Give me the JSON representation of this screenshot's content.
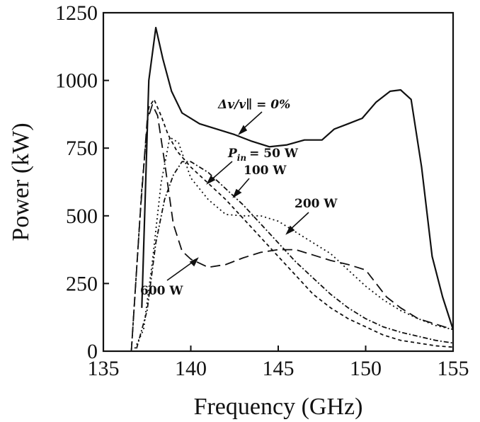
{
  "chart_data": {
    "type": "line",
    "xlabel": "Frequency (GHz)",
    "ylabel": "Power (kW)",
    "xlim": [
      135,
      155
    ],
    "ylim": [
      0,
      1250
    ],
    "xticks": [
      "135",
      "140",
      "145",
      "150",
      "155"
    ],
    "yticks": [
      "0",
      "250",
      "500",
      "750",
      "1000",
      "1250"
    ],
    "grid": false,
    "legend": "none",
    "annotations": {
      "label_0": "Δv/v∥ = 0%",
      "label_50": "P",
      "label_50_sub": "in",
      "label_50_rest": "= 50 W",
      "label_100": "100 W",
      "label_200": "200 W",
      "label_600": "600 W"
    },
    "series": [
      {
        "style": "solid",
        "x": [
          137.2,
          137.6,
          138.0,
          138.4,
          138.9,
          139.5,
          140.5,
          141.5,
          142.5,
          143.5,
          144.5,
          145.5,
          146.5,
          147.5,
          148.2,
          149.0,
          149.8,
          150.6,
          151.4,
          152.0,
          152.6,
          153.2,
          153.8,
          154.4,
          155.0
        ],
        "y": [
          160,
          1000,
          1195,
          1080,
          960,
          880,
          840,
          820,
          800,
          775,
          755,
          762,
          780,
          780,
          820,
          840,
          860,
          920,
          960,
          965,
          930,
          680,
          350,
          200,
          80
        ]
      },
      {
        "style": "dotted",
        "x": [
          136.8,
          137.3,
          137.8,
          138.3,
          138.8,
          139.3,
          140.0,
          141.0,
          142.0,
          143.0,
          144.0,
          145.0,
          146.0,
          147.0,
          148.0,
          149.0,
          150.0,
          151.0,
          152.0,
          153.0,
          154.0,
          155.0
        ],
        "y": [
          10,
          80,
          330,
          620,
          790,
          770,
          640,
          560,
          505,
          500,
          500,
          480,
          440,
          400,
          360,
          300,
          240,
          190,
          150,
          120,
          95,
          80
        ]
      },
      {
        "style": "dash-dot",
        "x": [
          136.9,
          137.5,
          138.0,
          138.5,
          139.0,
          139.5,
          140.0,
          141.0,
          142.0,
          143.0,
          144.0,
          145.0,
          146.0,
          147.0,
          148.0,
          149.0,
          150.0,
          151.0,
          152.0,
          153.0,
          154.0,
          155.0
        ],
        "y": [
          10,
          150,
          400,
          560,
          650,
          700,
          700,
          660,
          600,
          540,
          470,
          400,
          330,
          270,
          210,
          160,
          120,
          90,
          70,
          55,
          40,
          30
        ]
      },
      {
        "style": "short-dash",
        "x": [
          136.6,
          137.2,
          137.6,
          137.9,
          138.3,
          138.7,
          139.2,
          140.0,
          141.0,
          142.0,
          143.0,
          144.0,
          145.0,
          146.0,
          147.0,
          148.0,
          149.0,
          150.0,
          151.0,
          152.0,
          153.0,
          154.0,
          155.0
        ],
        "y": [
          0,
          600,
          900,
          930,
          870,
          800,
          740,
          680,
          620,
          560,
          490,
          420,
          350,
          280,
          210,
          160,
          120,
          90,
          60,
          40,
          30,
          20,
          15
        ]
      },
      {
        "style": "long-dash",
        "x": [
          136.6,
          137.1,
          137.5,
          137.8,
          138.1,
          138.5,
          139.0,
          139.5,
          140.0,
          141.0,
          142.0,
          143.0,
          144.0,
          145.0,
          146.0,
          147.0,
          148.0,
          149.0,
          150.0,
          150.6,
          151.2,
          152.0,
          153.0,
          154.0,
          155.0
        ],
        "y": [
          0,
          500,
          850,
          910,
          870,
          700,
          470,
          370,
          340,
          310,
          320,
          345,
          365,
          375,
          375,
          355,
          335,
          320,
          300,
          250,
          200,
          160,
          120,
          100,
          80
        ]
      }
    ]
  }
}
